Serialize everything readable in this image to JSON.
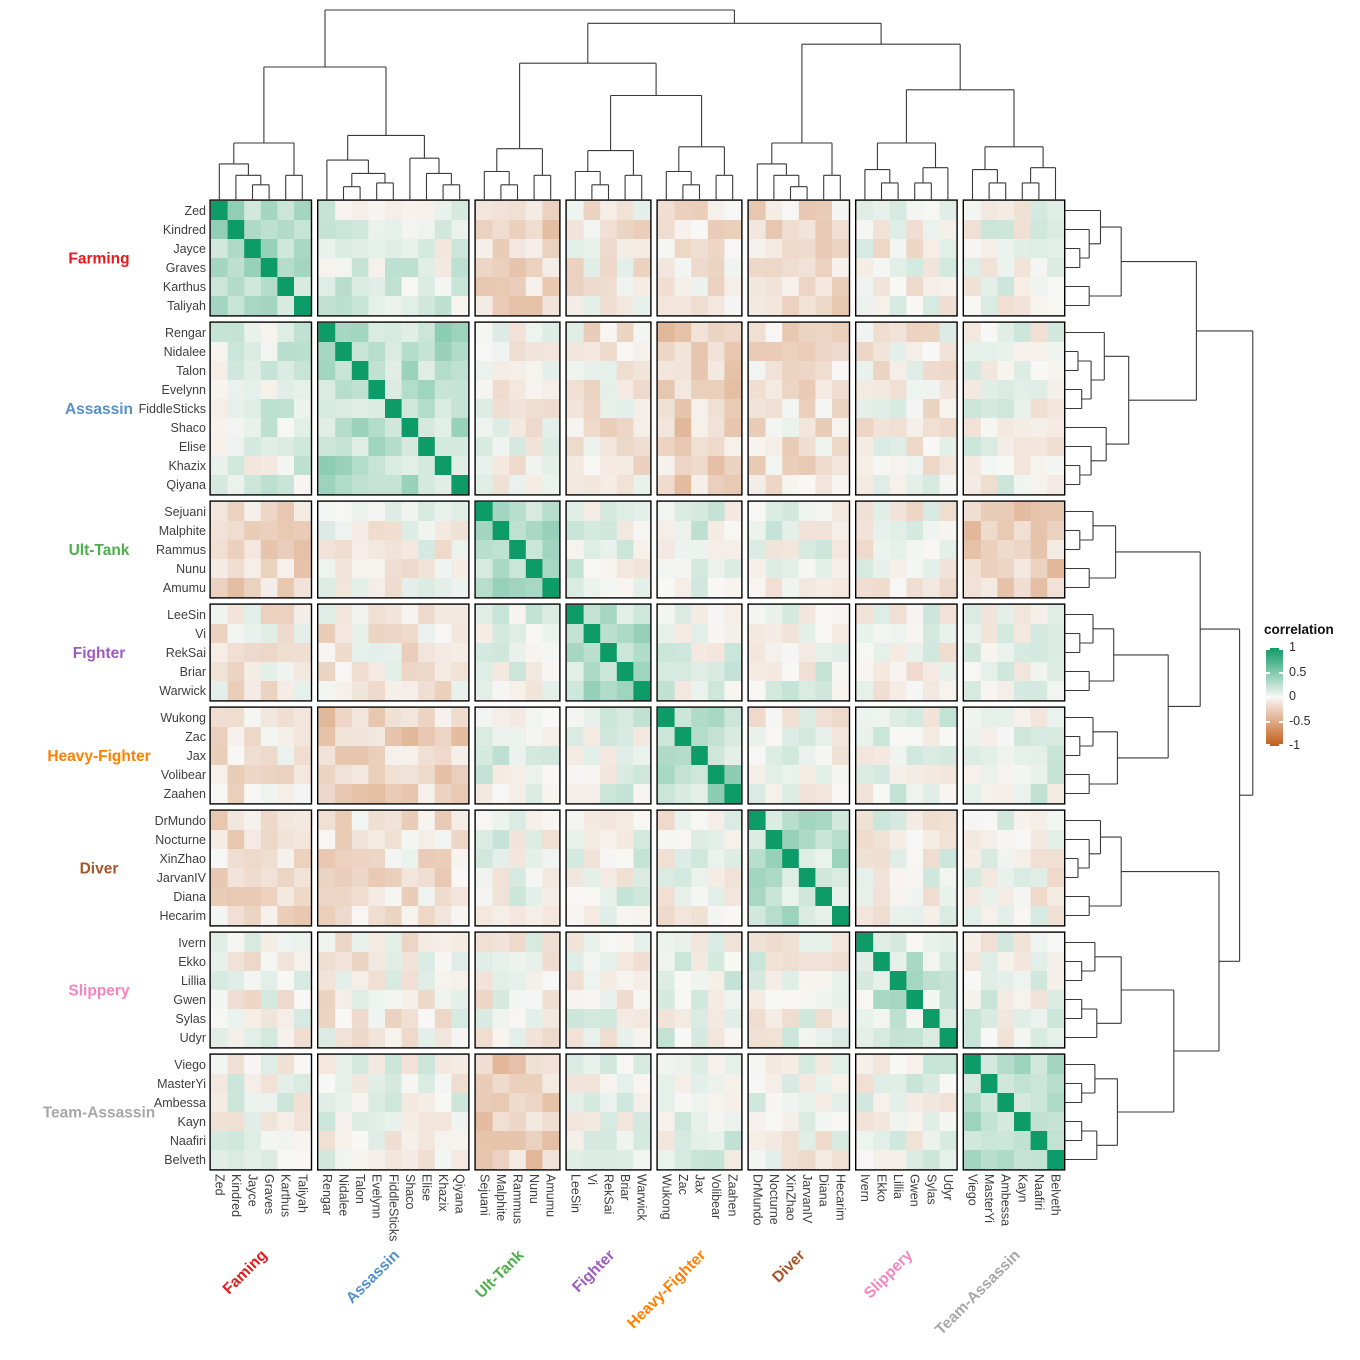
{
  "chart_data": {
    "type": "heatmap",
    "description_title": "",
    "legend": {
      "title": "correlation",
      "ticks": [
        1,
        0.5,
        0,
        -0.5,
        -1
      ]
    },
    "scale": {
      "domain": [
        -1,
        1
      ],
      "max_color": "#0e9b6a",
      "zero_color": "#f8f7f5",
      "min_color": "#c35d18"
    },
    "axis_text_color": "#3f3f3f",
    "groups": [
      {
        "name": "Farming",
        "bottom_label": "Faming",
        "color": "#e41a1c",
        "members": [
          "Zed",
          "Kindred",
          "Jayce",
          "Graves",
          "Karthus",
          "Taliyah"
        ]
      },
      {
        "name": "Assassin",
        "bottom_label": "Assassin",
        "color": "#5591c9",
        "members": [
          "Rengar",
          "Nidalee",
          "Talon",
          "Evelynn",
          "FiddleSticks",
          "Shaco",
          "Elise",
          "Khazix",
          "Qiyana"
        ]
      },
      {
        "name": "Ult-Tank",
        "bottom_label": "Ult-Tank",
        "color": "#4daf4a",
        "members": [
          "Sejuani",
          "Malphite",
          "Rammus",
          "Nunu",
          "Amumu"
        ]
      },
      {
        "name": "Fighter",
        "bottom_label": "Fighter",
        "color": "#9e5ac1",
        "members": [
          "LeeSin",
          "Vi",
          "RekSai",
          "Briar",
          "Warwick"
        ]
      },
      {
        "name": "Heavy-Fighter",
        "bottom_label": "Heavy-Fighter",
        "color": "#ff7f00",
        "members": [
          "Wukong",
          "Zac",
          "Jax",
          "Volibear",
          "Zaahen"
        ]
      },
      {
        "name": "Diver",
        "bottom_label": "Diver",
        "color": "#a65628",
        "members": [
          "DrMundo",
          "Nocturne",
          "XinZhao",
          "JarvanIV",
          "Diana",
          "Hecarim"
        ]
      },
      {
        "name": "Slippery",
        "bottom_label": "Slippery",
        "color": "#f783bf",
        "members": [
          "Ivern",
          "Ekko",
          "Lillia",
          "Gwen",
          "Sylas",
          "Udyr"
        ]
      },
      {
        "name": "Team-Assassin",
        "bottom_label": "Team-Assassin",
        "color": "#a8a8a8",
        "members": [
          "Viego",
          "MasterYi",
          "Ambessa",
          "Kayn",
          "Naafiri",
          "Belveth"
        ]
      }
    ],
    "diagonal_value": 1,
    "cell_noise": 0.38,
    "block_mean_correlation": {
      "group_order": [
        "Farming",
        "Assassin",
        "Ult-Tank",
        "Fighter",
        "Heavy-Fighter",
        "Diver",
        "Slippery",
        "Team-Assassin"
      ],
      "matrix": [
        [
          0.32,
          0.08,
          -0.2,
          -0.08,
          -0.1,
          -0.13,
          -0.03,
          0.03
        ],
        [
          0.08,
          0.28,
          -0.03,
          -0.09,
          -0.22,
          -0.12,
          -0.05,
          0.02
        ],
        [
          -0.2,
          -0.03,
          0.33,
          0.06,
          0.09,
          0.03,
          -0.03,
          -0.24
        ],
        [
          -0.08,
          -0.09,
          0.06,
          0.25,
          0.05,
          0.03,
          0.01,
          0.03
        ],
        [
          -0.1,
          -0.22,
          0.09,
          0.05,
          0.27,
          -0.02,
          0.05,
          0.05
        ],
        [
          -0.13,
          -0.12,
          0.03,
          0.03,
          -0.02,
          0.24,
          0.01,
          -0.01
        ],
        [
          -0.03,
          -0.05,
          -0.03,
          0.01,
          0.05,
          0.01,
          0.18,
          0.03
        ],
        [
          0.03,
          0.02,
          -0.24,
          0.03,
          0.05,
          -0.01,
          0.03,
          0.27
        ]
      ]
    },
    "dendrogram": {
      "tree": [
        [
          [
            [
              "Zed",
              [
                "Kindred",
                [
                  "Jayce",
                  "Graves",
                  0.08
                ],
                0.13
              ],
              0.19
            ],
            [
              "Karthus",
              "Taliyah",
              0.13
            ],
            0.3
          ],
          [
            [
              "Rengar",
              [
                [
                  "Nidalee",
                  "Talon",
                  0.07
                ],
                [
                  "Evelynn",
                  "FiddleSticks",
                  0.09
                ],
                0.14
              ],
              0.21
            ],
            [
              "Shaco",
              [
                "Elise",
                [
                  "Khazix",
                  "Qiyana",
                  0.08
                ],
                0.14
              ],
              0.22
            ],
            0.34
          ],
          0.7
        ],
        [
          [
            [
              [
                "Sejuani",
                [
                  "Malphite",
                  "Rammus",
                  0.08
                ],
                0.15
              ],
              [
                "Nunu",
                "Amumu",
                0.13
              ],
              0.27
            ],
            [
              [
                [
                  "LeeSin",
                  [
                    "Vi",
                    "RekSai",
                    0.08
                  ],
                  0.15
                ],
                [
                  "Briar",
                  "Warwick",
                  0.13
                ],
                0.26
              ],
              [
                [
                  "Wukong",
                  [
                    "Zac",
                    "Jax",
                    0.08
                  ],
                  0.15
                ],
                [
                  "Volibear",
                  "Zaahen",
                  0.13
                ],
                0.28
              ],
              0.55
            ],
            0.72
          ],
          [
            [
              [
                "DrMundo",
                [
                  "Nocturne",
                  [
                    "XinZhao",
                    "JarvanIV",
                    0.07
                  ],
                  0.13
                ],
                0.19
              ],
              [
                "Diana",
                "Hecarim",
                0.13
              ],
              0.3
            ],
            [
              [
                [
                  "Ivern",
                  [
                    "Ekko",
                    "Lillia",
                    0.09
                  ],
                  0.16
                ],
                [
                  [
                    "Gwen",
                    "Sylas",
                    0.09
                  ],
                  "Udyr",
                  0.17
                ],
                0.3
              ],
              [
                [
                  "Viego",
                  [
                    "MasterYi",
                    "Ambessa",
                    0.09
                  ],
                  0.16
                ],
                [
                  [
                    "Kayn",
                    "Naafiri",
                    0.09
                  ],
                  "Belveth",
                  0.17
                ],
                0.28
              ],
              0.58
            ],
            0.82
          ],
          0.93
        ],
        1.0
      ]
    }
  }
}
